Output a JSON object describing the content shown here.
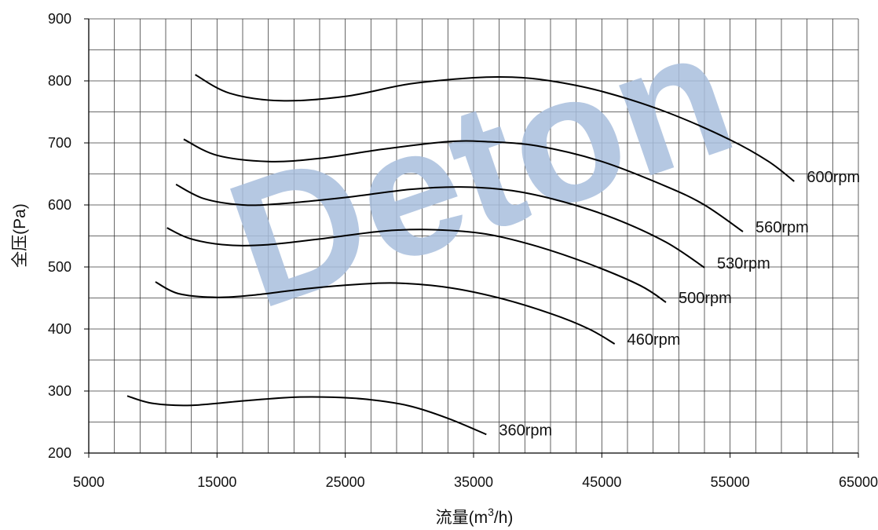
{
  "chart_data": {
    "type": "line",
    "watermark": "Deton",
    "xlabel_main": "流量(m",
    "xlabel_sup": "3",
    "xlabel_tail": "/h)",
    "ylabel": "全压(Pa)",
    "xlim": [
      5000,
      65000
    ],
    "ylim": [
      200,
      900
    ],
    "x_ticks": [
      5000,
      15000,
      25000,
      35000,
      45000,
      55000,
      65000
    ],
    "y_ticks": [
      200,
      300,
      400,
      500,
      600,
      700,
      800,
      900
    ],
    "grid": true,
    "series": [
      {
        "name": "600rpm",
        "points": [
          [
            13300,
            810
          ],
          [
            16000,
            780
          ],
          [
            20000,
            768
          ],
          [
            25000,
            775
          ],
          [
            30000,
            795
          ],
          [
            35000,
            805
          ],
          [
            38000,
            806
          ],
          [
            41000,
            800
          ],
          [
            45000,
            783
          ],
          [
            50000,
            750
          ],
          [
            55000,
            705
          ],
          [
            58000,
            670
          ],
          [
            60000,
            638
          ]
        ]
      },
      {
        "name": "560rpm",
        "points": [
          [
            12400,
            706
          ],
          [
            15000,
            680
          ],
          [
            19000,
            670
          ],
          [
            23000,
            675
          ],
          [
            28000,
            690
          ],
          [
            33000,
            702
          ],
          [
            36000,
            702
          ],
          [
            40000,
            695
          ],
          [
            45000,
            670
          ],
          [
            50000,
            630
          ],
          [
            53000,
            600
          ],
          [
            56000,
            557
          ]
        ]
      },
      {
        "name": "530rpm",
        "points": [
          [
            11800,
            633
          ],
          [
            14000,
            610
          ],
          [
            17000,
            600
          ],
          [
            20000,
            602
          ],
          [
            25000,
            612
          ],
          [
            30000,
            625
          ],
          [
            34000,
            629
          ],
          [
            38000,
            623
          ],
          [
            42000,
            605
          ],
          [
            46000,
            578
          ],
          [
            50000,
            540
          ],
          [
            53000,
            499
          ]
        ]
      },
      {
        "name": "500rpm",
        "points": [
          [
            11100,
            563
          ],
          [
            13000,
            545
          ],
          [
            16000,
            535
          ],
          [
            19000,
            536
          ],
          [
            23000,
            545
          ],
          [
            28000,
            558
          ],
          [
            32000,
            560
          ],
          [
            36000,
            553
          ],
          [
            40000,
            533
          ],
          [
            44000,
            505
          ],
          [
            48000,
            470
          ],
          [
            50000,
            443
          ]
        ]
      },
      {
        "name": "460rpm",
        "points": [
          [
            10200,
            476
          ],
          [
            12000,
            457
          ],
          [
            15000,
            451
          ],
          [
            18000,
            455
          ],
          [
            22000,
            465
          ],
          [
            26000,
            472
          ],
          [
            29000,
            474
          ],
          [
            33000,
            467
          ],
          [
            37000,
            450
          ],
          [
            41000,
            425
          ],
          [
            44000,
            400
          ],
          [
            46000,
            376
          ]
        ]
      },
      {
        "name": "360rpm",
        "points": [
          [
            8000,
            292
          ],
          [
            10000,
            280
          ],
          [
            13000,
            277
          ],
          [
            17000,
            284
          ],
          [
            21000,
            290
          ],
          [
            24000,
            290
          ],
          [
            27000,
            286
          ],
          [
            30000,
            276
          ],
          [
            33000,
            256
          ],
          [
            36000,
            230
          ]
        ]
      }
    ]
  }
}
